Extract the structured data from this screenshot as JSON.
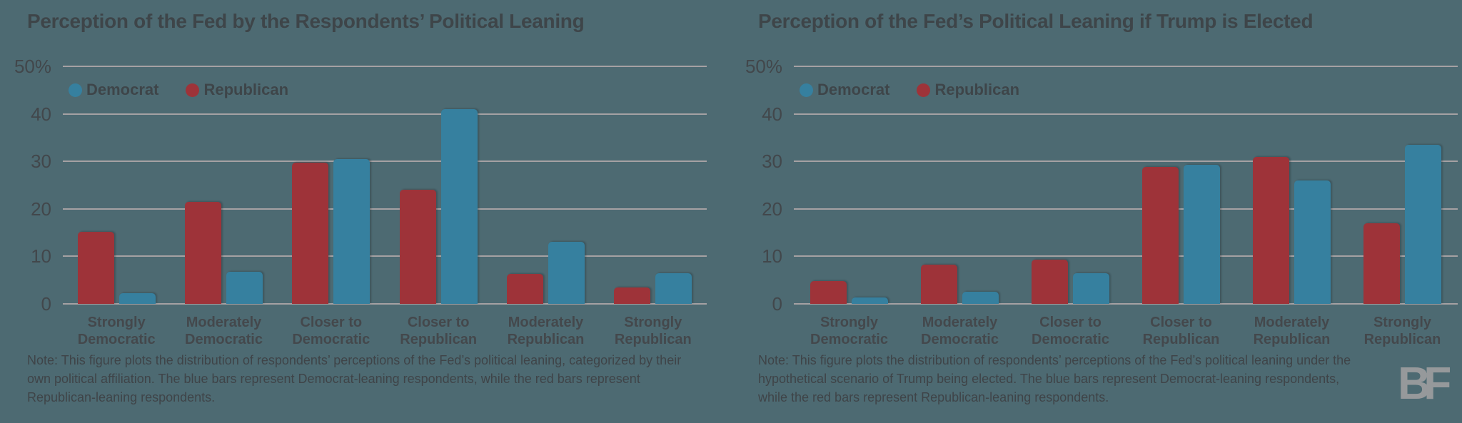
{
  "colors": {
    "background": "#4D6A72",
    "bar_democrat": "#36809F",
    "bar_republican": "#9E3339",
    "text_dark": "#3E4549",
    "gridline": "#A5A1A3",
    "logo_gray": "#96999B"
  },
  "logo": {
    "text": "BF"
  },
  "charts": [
    {
      "title": "Perception of the Fed by the Respondents’ Political Leaning",
      "legend": [
        {
          "label": "Democrat",
          "color": "#36809F"
        },
        {
          "label": "Republican",
          "color": "#9E3339"
        }
      ],
      "note": "Note: This figure plots the distribution of respondents’ perceptions of the Fed’s political leaning, categorized by their own political affiliation. The blue bars represent Democrat-leaning respondents, while the red bars represent Republican-leaning respondents.",
      "chart_data": {
        "type": "bar",
        "categories": [
          "Strongly\nDemocratic",
          "Moderately\nDemocratic",
          "Closer to\nDemocratic",
          "Closer to\nRepublican",
          "Moderately\nRepublican",
          "Strongly\nRepublican"
        ],
        "series": [
          {
            "name": "Republican",
            "color": "#9E3339",
            "values": [
              15.1,
              21.5,
              29.7,
              24.0,
              6.3,
              3.4
            ]
          },
          {
            "name": "Democrat",
            "color": "#36809F",
            "values": [
              2.3,
              6.8,
              30.5,
              41.0,
              13.0,
              6.5
            ]
          }
        ],
        "ylabel": "",
        "ylim": [
          0,
          50
        ],
        "yticks": [
          {
            "value": 50,
            "label": "50%"
          },
          {
            "value": 40,
            "label": "40"
          },
          {
            "value": 30,
            "label": "30"
          },
          {
            "value": 20,
            "label": "20"
          },
          {
            "value": 10,
            "label": "10"
          },
          {
            "value": 0,
            "label": "0"
          }
        ],
        "grid": true,
        "legend_position": "top-left"
      }
    },
    {
      "title": "Perception of the Fed’s Political Leaning if Trump is Elected",
      "legend": [
        {
          "label": "Democrat",
          "color": "#36809F"
        },
        {
          "label": "Republican",
          "color": "#9E3339"
        }
      ],
      "note": "Note: This figure plots the distribution of respondents’ perceptions of the Fed’s political leaning under the hypothetical scenario of Trump being elected. The blue bars represent Democrat-leaning respondents, while the red bars represent Republican-leaning respondents.",
      "chart_data": {
        "type": "bar",
        "categories": [
          "Strongly\nDemocratic",
          "Moderately\nDemocratic",
          "Closer to\nDemocratic",
          "Closer to\nRepublican",
          "Moderately\nRepublican",
          "Strongly\nRepublican"
        ],
        "series": [
          {
            "name": "Republican",
            "color": "#9E3339",
            "values": [
              4.8,
              8.2,
              9.3,
              28.8,
              31.0,
              17.0
            ]
          },
          {
            "name": "Democrat",
            "color": "#36809F",
            "values": [
              1.4,
              2.5,
              6.5,
              29.3,
              26.0,
              33.5
            ]
          }
        ],
        "ylabel": "",
        "ylim": [
          0,
          50
        ],
        "yticks": [
          {
            "value": 50,
            "label": "50%"
          },
          {
            "value": 40,
            "label": "40"
          },
          {
            "value": 30,
            "label": "30"
          },
          {
            "value": 20,
            "label": "20"
          },
          {
            "value": 10,
            "label": "10"
          },
          {
            "value": 0,
            "label": "0"
          }
        ],
        "grid": true,
        "legend_position": "top-left"
      }
    }
  ]
}
